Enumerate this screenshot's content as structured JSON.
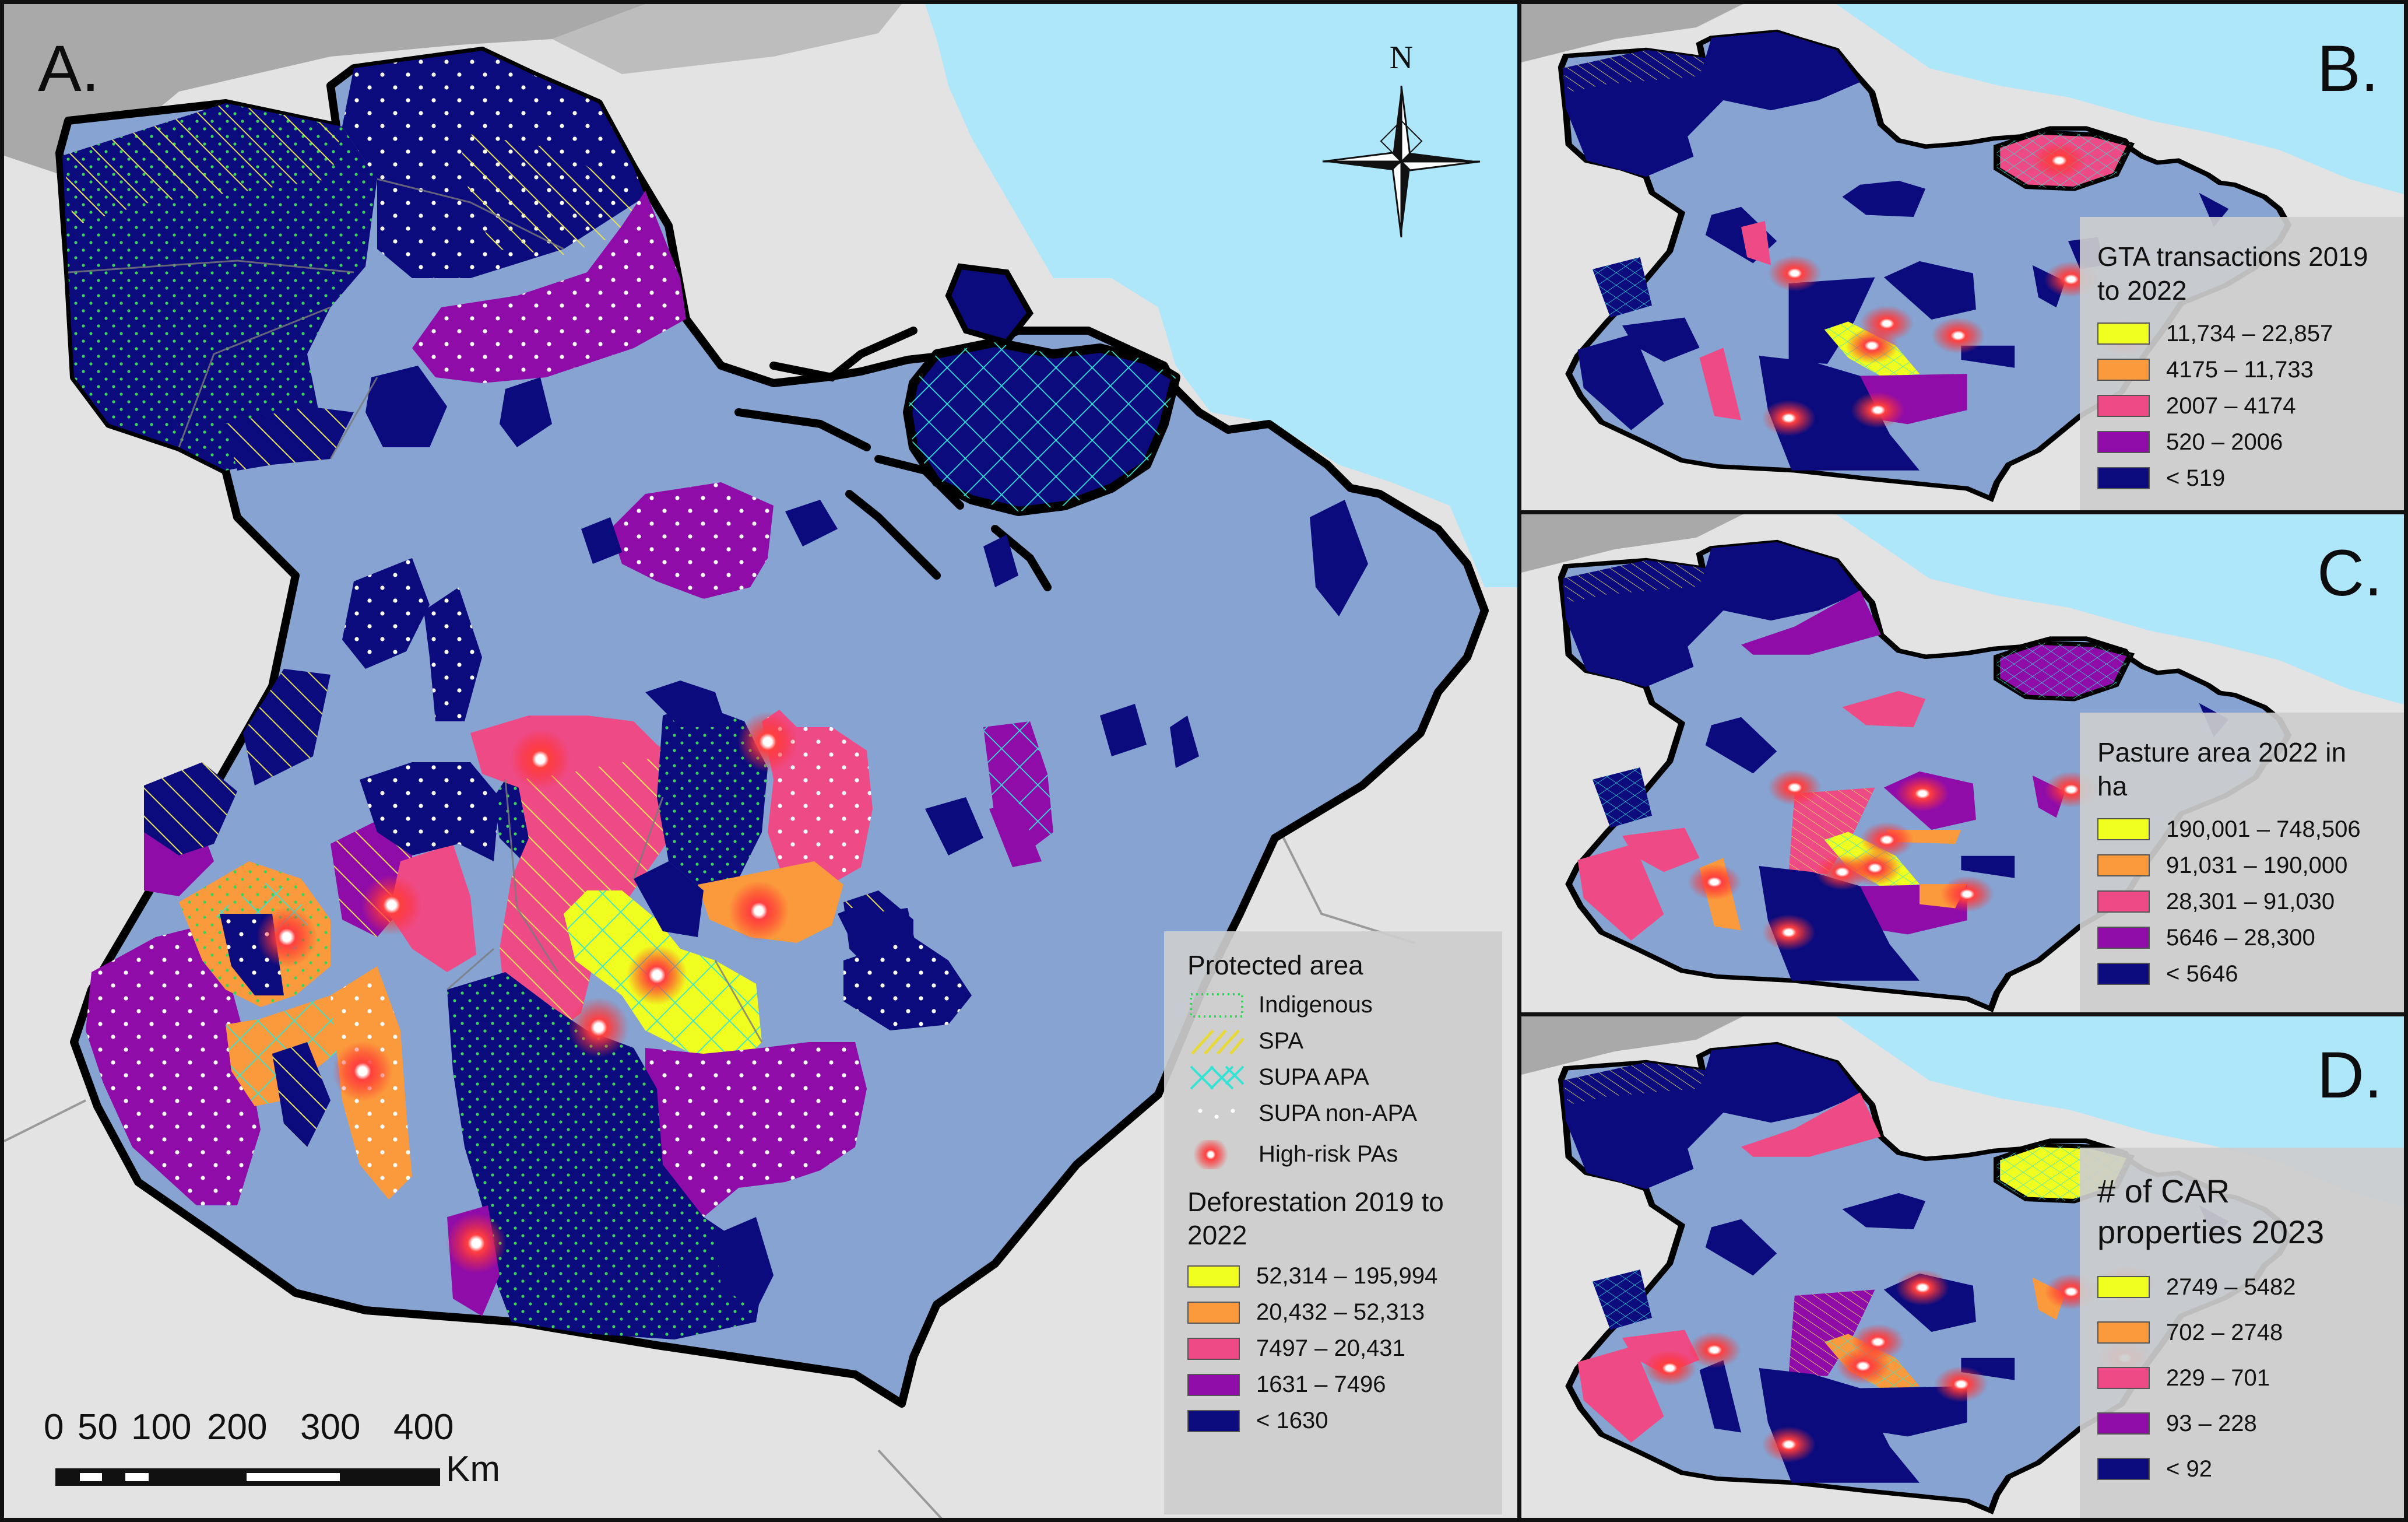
{
  "panels": {
    "A": {
      "label": "A.",
      "protected_area_title": "Protected area",
      "protected_items": [
        {
          "label": "Indigenous",
          "symbol": "indigenous-dots"
        },
        {
          "label": "SPA",
          "symbol": "spa-hatch"
        },
        {
          "label": "SUPA APA",
          "symbol": "supa-apa-crosshatch"
        },
        {
          "label": "SUPA non-APA",
          "symbol": "supa-non-apa-dots"
        },
        {
          "label": "High-risk PAs",
          "symbol": "high-risk-glow"
        }
      ],
      "deforestation_title": "Deforestation 2019 to 2022",
      "deforestation_classes": [
        {
          "label": "52,314 – 195,994",
          "color": "#f0ff1f"
        },
        {
          "label": "20,432 – 52,313",
          "color": "#fb9a3c"
        },
        {
          "label": "7497 – 20,431",
          "color": "#ee4a86"
        },
        {
          "label": "1631 – 7496",
          "color": "#8f0ca8"
        },
        {
          "label": "< 1630",
          "color": "#0b0b7e"
        }
      ]
    },
    "B": {
      "label": "B.",
      "legend_title": "GTA transactions 2019 to 2022",
      "classes": [
        {
          "label": "11,734 – 22,857",
          "color": "#f0ff1f"
        },
        {
          "label": "4175 – 11,733",
          "color": "#fb9a3c"
        },
        {
          "label": "2007 – 4174",
          "color": "#ee4a86"
        },
        {
          "label": "520 – 2006",
          "color": "#8f0ca8"
        },
        {
          "label": "< 519",
          "color": "#0b0b7e"
        }
      ]
    },
    "C": {
      "label": "C.",
      "legend_title": "Pasture area 2022 in ha",
      "classes": [
        {
          "label": "190,001 – 748,506",
          "color": "#f0ff1f"
        },
        {
          "label": "91,031 – 190,000",
          "color": "#fb9a3c"
        },
        {
          "label": "28,301 – 91,030",
          "color": "#ee4a86"
        },
        {
          "label": "5646 – 28,300",
          "color": "#8f0ca8"
        },
        {
          "label": "< 5646",
          "color": "#0b0b7e"
        }
      ]
    },
    "D": {
      "label": "D.",
      "legend_title": "# of CAR properties 2023",
      "classes": [
        {
          "label": "2749 – 5482",
          "color": "#f0ff1f"
        },
        {
          "label": "702 – 2748",
          "color": "#fb9a3c"
        },
        {
          "label": "229 – 701",
          "color": "#ee4a86"
        },
        {
          "label": "93 – 228",
          "color": "#8f0ca8"
        },
        {
          "label": "< 92",
          "color": "#0b0b7e"
        }
      ]
    }
  },
  "scale_bar": {
    "ticks": [
      "0",
      "50",
      "100",
      "200",
      "300",
      "400"
    ],
    "unit": "Km"
  },
  "north_arrow": {
    "label": "N"
  },
  "colors": {
    "ocean": "#aee6fa",
    "land_outside": "#e3e3e3",
    "state_base": "#86a3d1",
    "neighbor_gray": "#a9a9a9",
    "border": "#000000"
  }
}
